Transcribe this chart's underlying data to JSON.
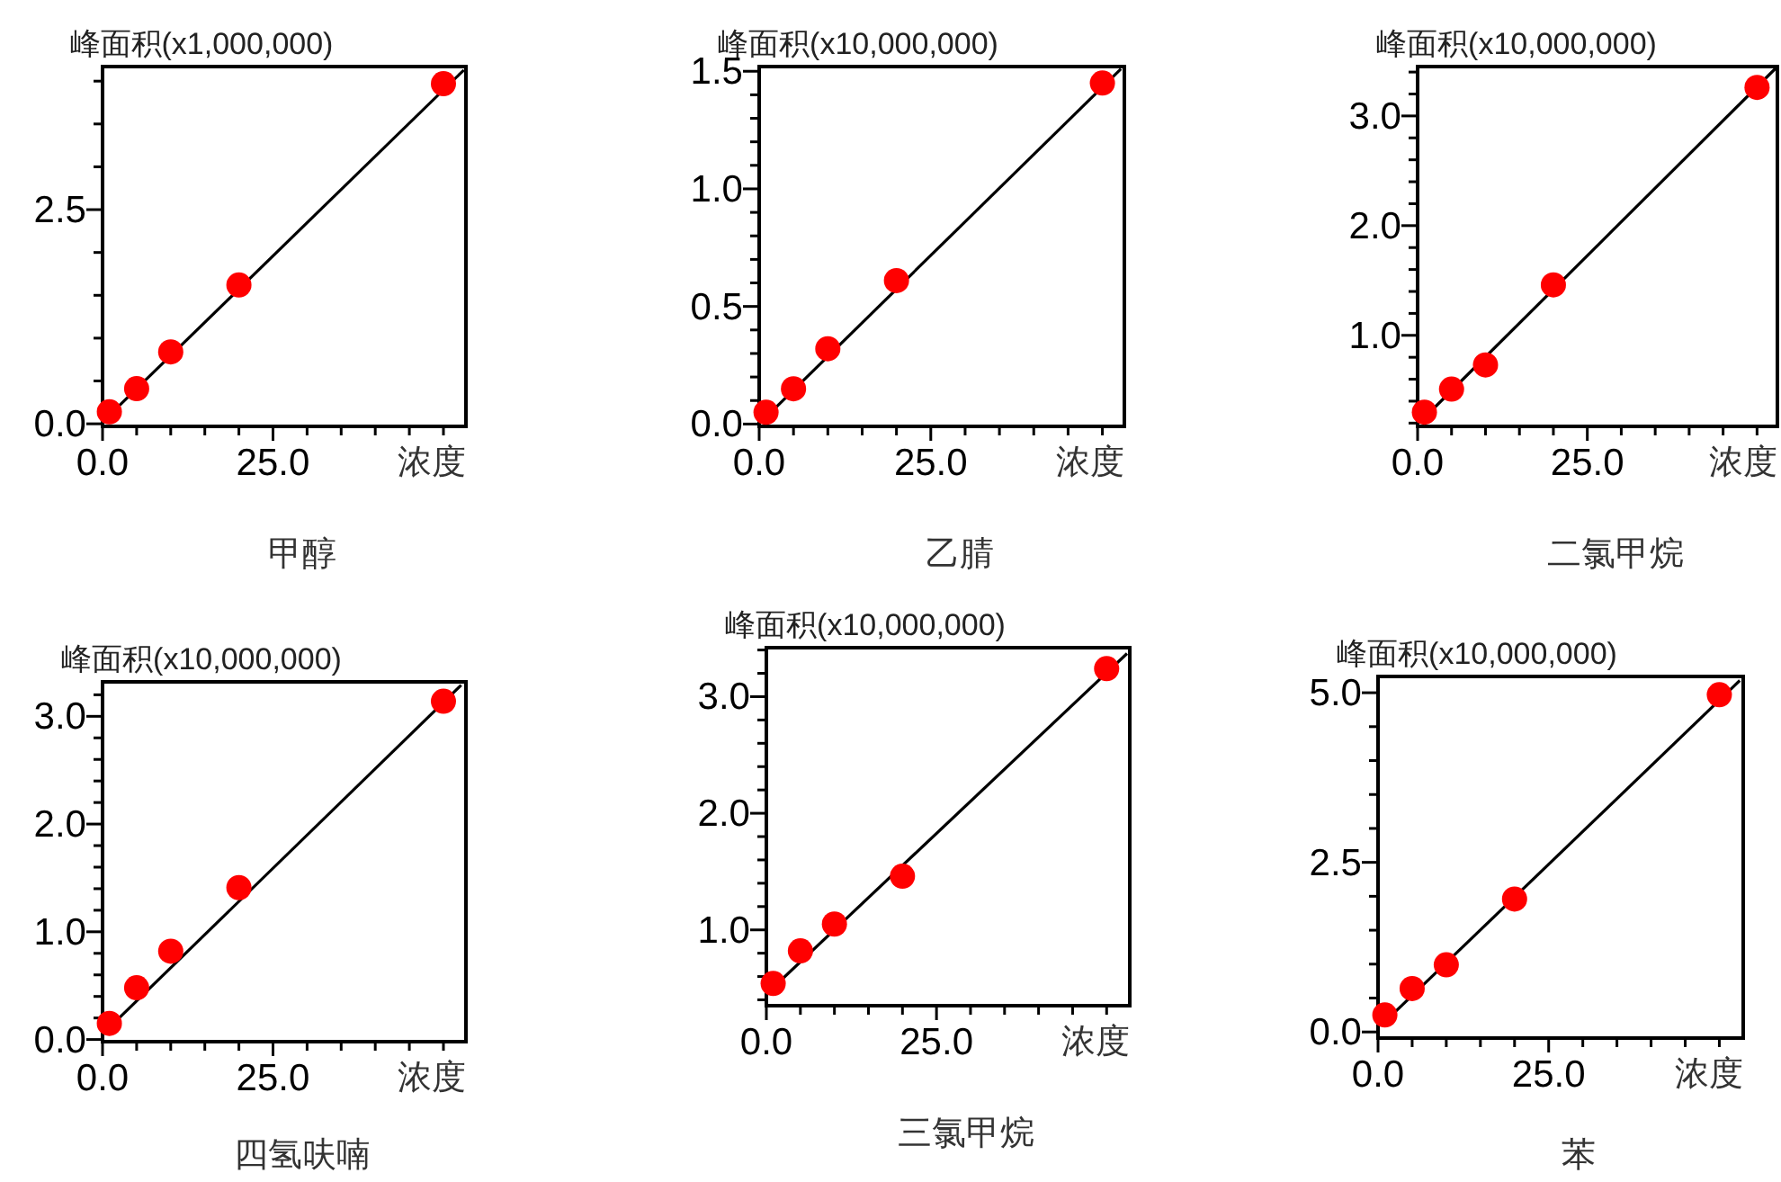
{
  "chart_data": [
    {
      "type": "scatter",
      "title": "甲醇",
      "ylabel": "峰面积(x1,000,000)",
      "xlabel": "浓度",
      "xlim": [
        0,
        53.3
      ],
      "ylim": [
        -0.03,
        4.17
      ],
      "xticks": [
        {
          "value": 0,
          "label": "0.0"
        },
        {
          "value": 5,
          "label": null
        },
        {
          "value": 10,
          "label": null
        },
        {
          "value": 15,
          "label": null
        },
        {
          "value": 20,
          "label": null
        },
        {
          "value": 25,
          "label": "25.0"
        },
        {
          "value": 30,
          "label": null
        },
        {
          "value": 35,
          "label": null
        },
        {
          "value": 40,
          "label": null
        },
        {
          "value": 45,
          "label": null
        },
        {
          "value": 50,
          "label": null
        }
      ],
      "yticks": [
        {
          "value": 0,
          "label": "0.0"
        },
        {
          "value": 0.5,
          "label": null
        },
        {
          "value": 1,
          "label": null
        },
        {
          "value": 1.5,
          "label": null
        },
        {
          "value": 2,
          "label": null
        },
        {
          "value": 2.5,
          "label": "2.5"
        },
        {
          "value": 3,
          "label": null
        },
        {
          "value": 3.5,
          "label": null
        },
        {
          "value": 4,
          "label": null
        }
      ],
      "series": [
        {
          "type": "scatter",
          "marker": "circle",
          "color": "#ff0000",
          "x": [
            1,
            5,
            10,
            20,
            50
          ],
          "values": [
            0.14,
            0.41,
            0.84,
            1.62,
            3.97
          ]
        },
        {
          "type": "line",
          "marker": "none",
          "color": "#000000",
          "x": [
            1,
            53
          ],
          "values": [
            0.1,
            4.13
          ]
        }
      ]
    },
    {
      "type": "scatter",
      "title": "乙腈",
      "ylabel": "峰面积(x10,000,000)",
      "xlabel": "浓度",
      "xlim": [
        0,
        53.2
      ],
      "ylim": [
        -0.01,
        1.52
      ],
      "xticks": [
        {
          "value": 0,
          "label": "0.0"
        },
        {
          "value": 5,
          "label": null
        },
        {
          "value": 10,
          "label": null
        },
        {
          "value": 15,
          "label": null
        },
        {
          "value": 20,
          "label": null
        },
        {
          "value": 25,
          "label": "25.0"
        },
        {
          "value": 30,
          "label": null
        },
        {
          "value": 35,
          "label": null
        },
        {
          "value": 40,
          "label": null
        },
        {
          "value": 45,
          "label": null
        },
        {
          "value": 50,
          "label": null
        }
      ],
      "yticks": [
        {
          "value": 0,
          "label": "0.0"
        },
        {
          "value": 0.1,
          "label": null
        },
        {
          "value": 0.2,
          "label": null
        },
        {
          "value": 0.3,
          "label": null
        },
        {
          "value": 0.4,
          "label": null
        },
        {
          "value": 0.5,
          "label": "0.5"
        },
        {
          "value": 0.6,
          "label": null
        },
        {
          "value": 0.7,
          "label": null
        },
        {
          "value": 0.8,
          "label": null
        },
        {
          "value": 0.9,
          "label": null
        },
        {
          "value": 1,
          "label": "1.0"
        },
        {
          "value": 1.1,
          "label": null
        },
        {
          "value": 1.2,
          "label": null
        },
        {
          "value": 1.3,
          "label": null
        },
        {
          "value": 1.4,
          "label": null
        },
        {
          "value": 1.5,
          "label": "1.5"
        }
      ],
      "series": [
        {
          "type": "scatter",
          "marker": "circle",
          "color": "#ff0000",
          "x": [
            1,
            5,
            10,
            20,
            50
          ],
          "values": [
            0.05,
            0.15,
            0.32,
            0.61,
            1.45
          ]
        },
        {
          "type": "line",
          "marker": "none",
          "color": "#000000",
          "x": [
            1,
            52.7
          ],
          "values": [
            0.03,
            1.51
          ]
        }
      ]
    },
    {
      "type": "scatter",
      "title": "二氯甲烷",
      "ylabel": "峰面积(x10,000,000)",
      "xlabel": "浓度",
      "xlim": [
        0,
        53
      ],
      "ylim": [
        0.17,
        3.45
      ],
      "xticks": [
        {
          "value": 0,
          "label": "0.0"
        },
        {
          "value": 5,
          "label": null
        },
        {
          "value": 10,
          "label": null
        },
        {
          "value": 15,
          "label": null
        },
        {
          "value": 20,
          "label": null
        },
        {
          "value": 25,
          "label": "25.0"
        },
        {
          "value": 30,
          "label": null
        },
        {
          "value": 35,
          "label": null
        },
        {
          "value": 40,
          "label": null
        },
        {
          "value": 45,
          "label": null
        },
        {
          "value": 50,
          "label": null
        }
      ],
      "yticks": [
        {
          "value": 0.2,
          "label": null
        },
        {
          "value": 0.4,
          "label": null
        },
        {
          "value": 0.6,
          "label": null
        },
        {
          "value": 0.8,
          "label": null
        },
        {
          "value": 1,
          "label": "1.0"
        },
        {
          "value": 1.2,
          "label": null
        },
        {
          "value": 1.4,
          "label": null
        },
        {
          "value": 1.6,
          "label": null
        },
        {
          "value": 1.8,
          "label": null
        },
        {
          "value": 2,
          "label": "2.0"
        },
        {
          "value": 2.2,
          "label": null
        },
        {
          "value": 2.4,
          "label": null
        },
        {
          "value": 2.6,
          "label": null
        },
        {
          "value": 2.8,
          "label": null
        },
        {
          "value": 3,
          "label": "3.0"
        },
        {
          "value": 3.2,
          "label": null
        },
        {
          "value": 3.4,
          "label": null
        }
      ],
      "series": [
        {
          "type": "scatter",
          "marker": "circle",
          "color": "#ff0000",
          "x": [
            1,
            5,
            10,
            20,
            50
          ],
          "values": [
            0.3,
            0.51,
            0.73,
            1.46,
            3.26
          ]
        },
        {
          "type": "line",
          "marker": "none",
          "color": "#000000",
          "x": [
            1,
            53
          ],
          "values": [
            0.25,
            3.45
          ]
        }
      ]
    },
    {
      "type": "scatter",
      "title": "四氢呋喃",
      "ylabel": "峰面积(x10,000,000)",
      "xlabel": "浓度",
      "xlim": [
        0,
        53.3
      ],
      "ylim": [
        -0.02,
        3.32
      ],
      "xticks": [
        {
          "value": 0,
          "label": "0.0"
        },
        {
          "value": 5,
          "label": null
        },
        {
          "value": 10,
          "label": null
        },
        {
          "value": 15,
          "label": null
        },
        {
          "value": 20,
          "label": null
        },
        {
          "value": 25,
          "label": "25.0"
        },
        {
          "value": 30,
          "label": null
        },
        {
          "value": 35,
          "label": null
        },
        {
          "value": 40,
          "label": null
        },
        {
          "value": 45,
          "label": null
        },
        {
          "value": 50,
          "label": null
        }
      ],
      "yticks": [
        {
          "value": 0,
          "label": "0.0"
        },
        {
          "value": 0.2,
          "label": null
        },
        {
          "value": 0.4,
          "label": null
        },
        {
          "value": 0.6,
          "label": null
        },
        {
          "value": 0.8,
          "label": null
        },
        {
          "value": 1,
          "label": "1.0"
        },
        {
          "value": 1.2,
          "label": null
        },
        {
          "value": 1.4,
          "label": null
        },
        {
          "value": 1.6,
          "label": null
        },
        {
          "value": 1.8,
          "label": null
        },
        {
          "value": 2,
          "label": "2.0"
        },
        {
          "value": 2.2,
          "label": null
        },
        {
          "value": 2.4,
          "label": null
        },
        {
          "value": 2.6,
          "label": null
        },
        {
          "value": 2.8,
          "label": null
        },
        {
          "value": 3,
          "label": "3.0"
        },
        {
          "value": 3.2,
          "label": null
        }
      ],
      "series": [
        {
          "type": "scatter",
          "marker": "circle",
          "color": "#ff0000",
          "x": [
            1,
            5,
            10,
            20,
            50
          ],
          "values": [
            0.15,
            0.48,
            0.82,
            1.41,
            3.14
          ]
        },
        {
          "type": "line",
          "marker": "none",
          "color": "#000000",
          "x": [
            0,
            52.6
          ],
          "values": [
            0.05,
            3.29
          ]
        }
      ]
    },
    {
      "type": "scatter",
      "title": "三氯甲烷",
      "ylabel": "峰面积(x10,000,000)",
      "xlabel": "浓度",
      "xlim": [
        0,
        53.4
      ],
      "ylim": [
        0.35,
        3.42
      ],
      "xticks": [
        {
          "value": 0,
          "label": "0.0"
        },
        {
          "value": 5,
          "label": null
        },
        {
          "value": 10,
          "label": null
        },
        {
          "value": 15,
          "label": null
        },
        {
          "value": 20,
          "label": null
        },
        {
          "value": 25,
          "label": "25.0"
        },
        {
          "value": 30,
          "label": null
        },
        {
          "value": 35,
          "label": null
        },
        {
          "value": 40,
          "label": null
        },
        {
          "value": 45,
          "label": null
        },
        {
          "value": 50,
          "label": null
        }
      ],
      "yticks": [
        {
          "value": 0.4,
          "label": null
        },
        {
          "value": 0.6,
          "label": null
        },
        {
          "value": 0.8,
          "label": null
        },
        {
          "value": 1,
          "label": "1.0"
        },
        {
          "value": 1.2,
          "label": null
        },
        {
          "value": 1.4,
          "label": null
        },
        {
          "value": 1.6,
          "label": null
        },
        {
          "value": 1.8,
          "label": null
        },
        {
          "value": 2,
          "label": "2.0"
        },
        {
          "value": 2.2,
          "label": null
        },
        {
          "value": 2.4,
          "label": null
        },
        {
          "value": 2.6,
          "label": null
        },
        {
          "value": 2.8,
          "label": null
        },
        {
          "value": 3,
          "label": "3.0"
        },
        {
          "value": 3.2,
          "label": null
        },
        {
          "value": 3.4,
          "label": null
        }
      ],
      "series": [
        {
          "type": "scatter",
          "marker": "circle",
          "color": "#ff0000",
          "x": [
            1,
            5,
            10,
            20,
            50
          ],
          "values": [
            0.54,
            0.82,
            1.05,
            1.46,
            3.24
          ]
        },
        {
          "type": "line",
          "marker": "none",
          "color": "#000000",
          "x": [
            0,
            53
          ],
          "values": [
            0.45,
            3.37
          ]
        }
      ]
    },
    {
      "type": "scatter",
      "title": "苯",
      "ylabel": "峰面积(x10,000,000)",
      "xlabel": "浓度",
      "xlim": [
        0,
        53.5
      ],
      "ylim": [
        -0.09,
        5.24
      ],
      "xticks": [
        {
          "value": 0,
          "label": "0.0"
        },
        {
          "value": 5,
          "label": null
        },
        {
          "value": 10,
          "label": null
        },
        {
          "value": 15,
          "label": null
        },
        {
          "value": 20,
          "label": null
        },
        {
          "value": 25,
          "label": "25.0"
        },
        {
          "value": 30,
          "label": null
        },
        {
          "value": 35,
          "label": null
        },
        {
          "value": 40,
          "label": null
        },
        {
          "value": 45,
          "label": null
        },
        {
          "value": 50,
          "label": null
        }
      ],
      "yticks": [
        {
          "value": 0,
          "label": "0.0"
        },
        {
          "value": 0.5,
          "label": null
        },
        {
          "value": 1,
          "label": null
        },
        {
          "value": 1.5,
          "label": null
        },
        {
          "value": 2,
          "label": null
        },
        {
          "value": 2.5,
          "label": "2.5"
        },
        {
          "value": 3,
          "label": null
        },
        {
          "value": 3.5,
          "label": null
        },
        {
          "value": 4,
          "label": null
        },
        {
          "value": 4.5,
          "label": null
        },
        {
          "value": 5,
          "label": "5.0"
        }
      ],
      "series": [
        {
          "type": "scatter",
          "marker": "circle",
          "color": "#ff0000",
          "x": [
            1,
            5,
            10,
            20,
            50
          ],
          "values": [
            0.25,
            0.64,
            0.99,
            1.96,
            4.97
          ]
        },
        {
          "type": "line",
          "marker": "none",
          "color": "#000000",
          "x": [
            1,
            53
          ],
          "values": [
            0.15,
            5.18
          ]
        }
      ]
    }
  ]
}
